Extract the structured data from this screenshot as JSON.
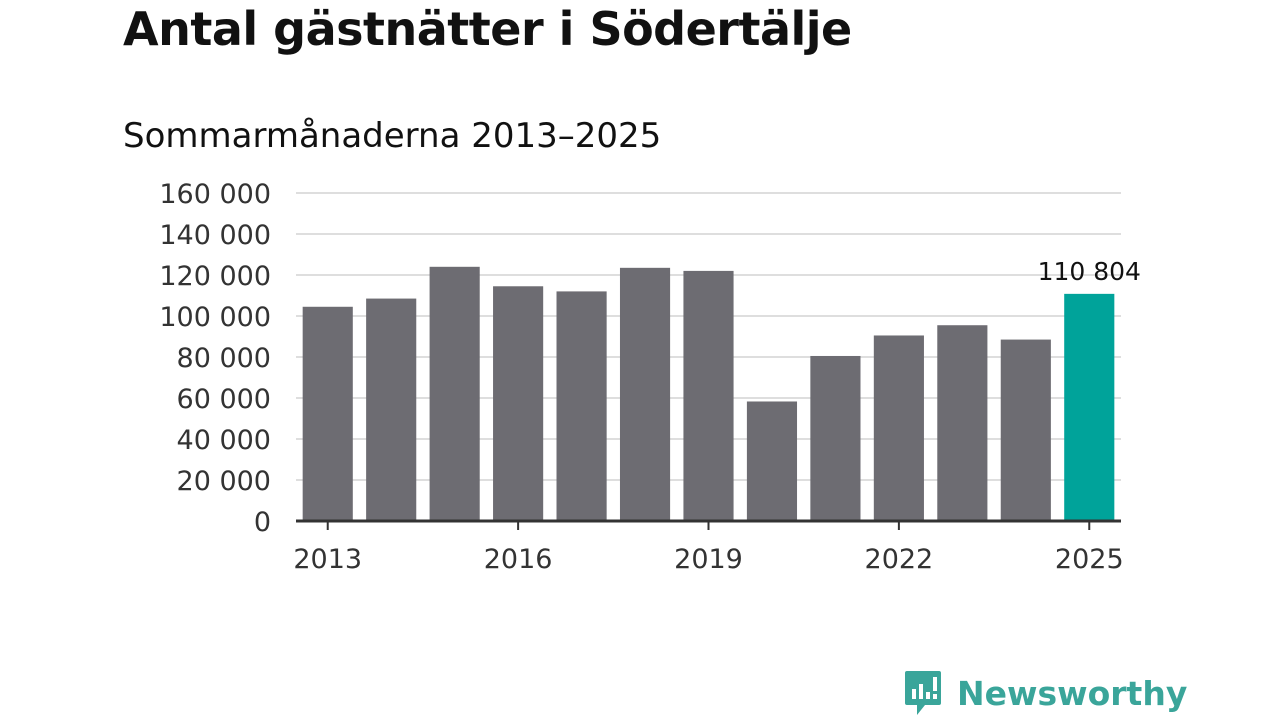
{
  "title": "Antal gästnätter i Södertälje",
  "subtitle": "Sommarmånaderna 2013–2025",
  "colors": {
    "bar": "#6d6c72",
    "highlight": "#00a39a",
    "grid": "#dedede",
    "axis": "#333333",
    "brand": "#3aa59a"
  },
  "brand": {
    "name": "Newsworthy",
    "icon": "newsworthy-logo-icon"
  },
  "chart_data": {
    "type": "bar",
    "title": "Antal gästnätter i Södertälje",
    "subtitle": "Sommarmånaderna 2013–2025",
    "categories": [
      "2013",
      "2014",
      "2015",
      "2016",
      "2017",
      "2018",
      "2019",
      "2020",
      "2021",
      "2022",
      "2023",
      "2024",
      "2025"
    ],
    "values": [
      104500,
      108500,
      124000,
      114500,
      112000,
      123500,
      122000,
      58300,
      80500,
      90500,
      95500,
      88500,
      110804
    ],
    "highlight_index": 12,
    "annotations": [
      {
        "category": "2025",
        "text": "110 804"
      }
    ],
    "x_tick_labels": [
      "2013",
      "2016",
      "2019",
      "2022",
      "2025"
    ],
    "y_ticks": [
      0,
      20000,
      40000,
      60000,
      80000,
      100000,
      120000,
      140000,
      160000
    ],
    "y_tick_labels": [
      "0",
      "20 000",
      "40 000",
      "60 000",
      "80 000",
      "100 000",
      "120 000",
      "140 000",
      "160 000"
    ],
    "ylim": [
      0,
      160000
    ],
    "grid": true,
    "legend": "none"
  }
}
